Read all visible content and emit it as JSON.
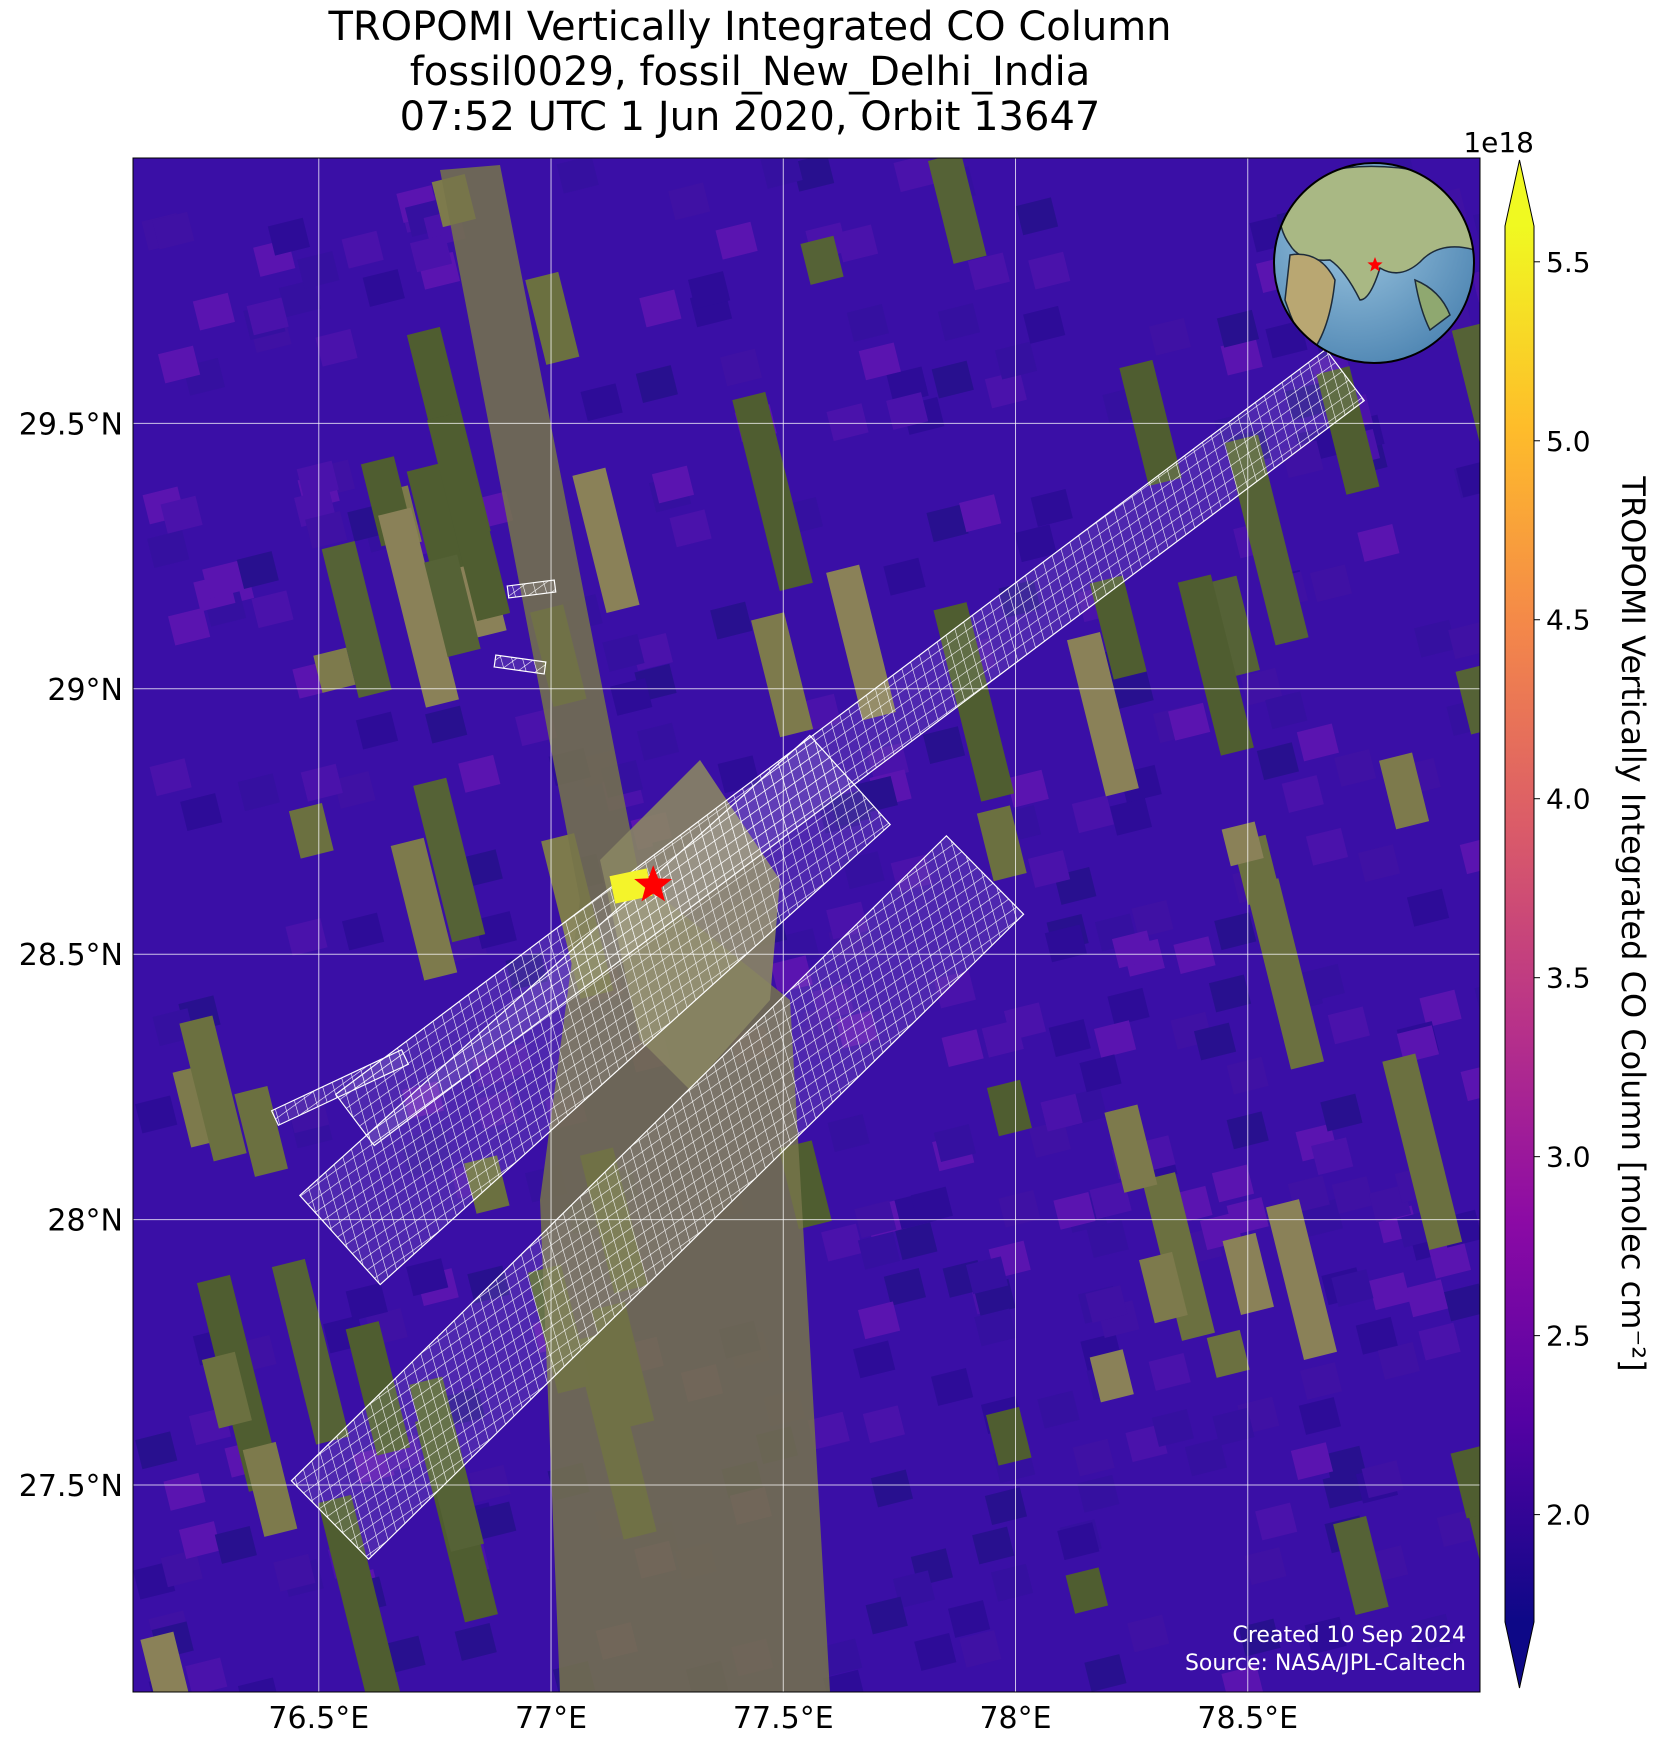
{
  "map": {
    "title": [
      "TROPOMI Vertically Integrated CO Column",
      "fossil0029, fossil_New_Delhi_India",
      "07:52 UTC 1 Jun 2020, Orbit 13647"
    ],
    "xlim": [
      76.1,
      79.0
    ],
    "ylim": [
      27.11,
      30.0
    ],
    "xticks": [
      {
        "value": 76.5,
        "label": "76.5°E"
      },
      {
        "value": 77,
        "label": "77°E"
      },
      {
        "value": 77.5,
        "label": "77.5°E"
      },
      {
        "value": 78,
        "label": "78°E"
      },
      {
        "value": 78.5,
        "label": "78.5°E"
      }
    ],
    "yticks": [
      {
        "value": 27.5,
        "label": "27.5°N"
      },
      {
        "value": 28,
        "label": "28°N"
      },
      {
        "value": 28.5,
        "label": "28.5°N"
      },
      {
        "value": 29,
        "label": "29°N"
      },
      {
        "value": 29.5,
        "label": "29.5°N"
      }
    ],
    "grid": true,
    "target": {
      "lon": 77.22,
      "lat": 28.63,
      "color": "#ff0000"
    },
    "colorbar": {
      "label": "TROPOMI Vertically Integrated CO Column [molec cm⁻²]",
      "scale_label": "1e18",
      "clim": [
        1.7,
        5.6
      ],
      "colormap": [
        "#0d0887",
        "#5302a3",
        "#8b0aa5",
        "#b83289",
        "#db5c68",
        "#f48849",
        "#febd2a",
        "#f0f921"
      ],
      "ticks": [
        {
          "value": 2.0,
          "label": "2.0"
        },
        {
          "value": 2.5,
          "label": "2.5"
        },
        {
          "value": 3.0,
          "label": "3.0"
        },
        {
          "value": 3.5,
          "label": "3.5"
        },
        {
          "value": 4.0,
          "label": "4.0"
        },
        {
          "value": 4.5,
          "label": "4.5"
        },
        {
          "value": 5.0,
          "label": "5.0"
        },
        {
          "value": 5.5,
          "label": "5.5"
        }
      ]
    },
    "credits": [
      "Created 10 Sep 2024",
      "Source: NASA/JPL-Caltech"
    ]
  }
}
